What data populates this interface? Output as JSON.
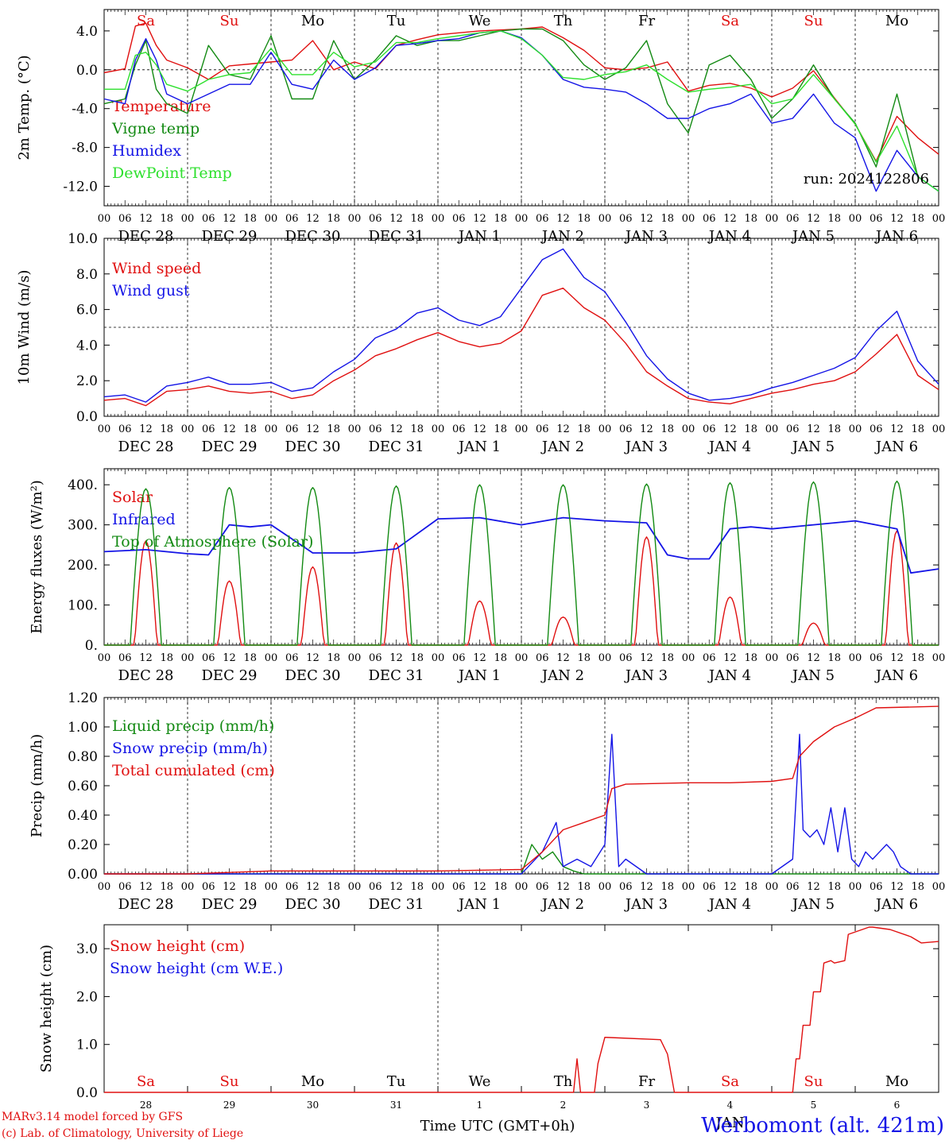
{
  "colors": {
    "red": "#e01010",
    "green": "#138a13",
    "blue": "#1414e6",
    "lightgreen": "#2ee02e",
    "black": "#000000"
  },
  "chart_data": [
    {
      "type": "line",
      "ylabel": "2m Temp. (°C)",
      "ylim": [
        -14,
        6.2
      ],
      "yticks": [
        4.0,
        0.0,
        -4.0,
        -8.0,
        -12.0
      ],
      "yticklabels": [
        "4.0",
        "0.0",
        "-4.0",
        "-8.0",
        "-12.0"
      ],
      "ref_line": 0,
      "weekdays": [
        "Sa",
        "Su",
        "Mo",
        "Tu",
        "We",
        "Th",
        "Fr",
        "Sa",
        "Su",
        "Mo"
      ],
      "annotation": "run: 2024122806",
      "x_hours": [
        0,
        6,
        9,
        12,
        15,
        18,
        24,
        30,
        36,
        42,
        48,
        54,
        60,
        66,
        72,
        78,
        84,
        90,
        96,
        102,
        108,
        114,
        120,
        126,
        132,
        138,
        144,
        150,
        156,
        162,
        168,
        174,
        180,
        186,
        192,
        198,
        204,
        210,
        216,
        222,
        228,
        234,
        240
      ],
      "series": [
        {
          "name": "Temperature",
          "color": "red",
          "values": [
            -0.3,
            0.1,
            4.5,
            4.8,
            2.5,
            1.0,
            0.2,
            -1.0,
            0.4,
            0.6,
            0.8,
            1.0,
            3.0,
            0.0,
            0.8,
            0.1,
            2.5,
            3.1,
            3.6,
            3.8,
            4.0,
            4.1,
            4.2,
            4.4,
            3.3,
            2.0,
            0.2,
            0.0,
            0.2,
            0.8,
            -2.2,
            -1.6,
            -1.4,
            -1.9,
            -2.8,
            -1.9,
            -0.1,
            -2.9,
            -5.6,
            -9.4,
            -4.8,
            -7.0,
            -8.7
          ]
        },
        {
          "name": "Vigne temp",
          "color": "green",
          "values": [
            -3.5,
            -3.0,
            0.5,
            3.0,
            -2.0,
            -3.5,
            -4.5,
            2.5,
            -0.5,
            -1.0,
            3.5,
            -3.0,
            -3.0,
            3.0,
            -1.0,
            1.0,
            3.5,
            2.5,
            3.0,
            3.0,
            3.5,
            4.0,
            4.2,
            4.2,
            3.0,
            0.5,
            -1.0,
            0.2,
            3.0,
            -3.5,
            -6.5,
            0.5,
            1.5,
            -1.0,
            -5.0,
            -3.0,
            0.5,
            -3.0,
            -5.5,
            -10.0,
            -2.5,
            -11.0,
            -12.5
          ]
        },
        {
          "name": "Humidex",
          "color": "blue",
          "values": [
            -3.0,
            -3.5,
            1.0,
            3.2,
            1.0,
            -2.5,
            -3.5,
            -2.5,
            -1.5,
            -1.5,
            1.8,
            -1.5,
            -2.0,
            1.0,
            -1.0,
            0.2,
            2.5,
            2.7,
            3.0,
            3.2,
            3.8,
            4.0,
            3.3,
            1.5,
            -1.0,
            -1.8,
            -2.0,
            -2.3,
            -3.5,
            -5.0,
            -5.0,
            -4.0,
            -3.5,
            -2.5,
            -5.5,
            -5.0,
            -2.5,
            -5.5,
            -7.0,
            -12.5,
            -8.3,
            -11.0,
            -12.5
          ]
        },
        {
          "name": "DewPoint Temp",
          "color": "lightgreen",
          "values": [
            -2.0,
            -2.0,
            1.5,
            1.8,
            0.5,
            -1.5,
            -2.2,
            -1.0,
            -0.5,
            -0.3,
            2.2,
            -0.5,
            -0.5,
            1.8,
            0.3,
            0.8,
            2.8,
            2.8,
            3.2,
            3.5,
            3.8,
            4.0,
            3.2,
            1.5,
            -0.8,
            -1.0,
            -0.5,
            -0.2,
            0.5,
            -1.0,
            -2.3,
            -2.0,
            -1.8,
            -1.5,
            -3.5,
            -3.0,
            -0.5,
            -3.0,
            -5.6,
            -9.5,
            -5.8,
            -11.0,
            -12.5
          ]
        }
      ]
    },
    {
      "type": "line",
      "ylabel": "10m Wind (m/s)",
      "ylim": [
        0,
        10
      ],
      "yticks": [
        0,
        2,
        4,
        6,
        8,
        10
      ],
      "yticklabels": [
        "0.0",
        "2.0",
        "4.0",
        "6.0",
        "8.0",
        "10.0"
      ],
      "ref_line": 5,
      "x_hours": [
        0,
        6,
        12,
        18,
        24,
        30,
        36,
        42,
        48,
        54,
        60,
        66,
        72,
        78,
        84,
        90,
        96,
        102,
        108,
        114,
        120,
        126,
        132,
        138,
        144,
        150,
        156,
        162,
        168,
        174,
        180,
        186,
        192,
        198,
        204,
        210,
        216,
        222,
        228,
        234,
        240
      ],
      "series": [
        {
          "name": "Wind speed",
          "color": "red",
          "values": [
            0.9,
            1.0,
            0.6,
            1.4,
            1.5,
            1.7,
            1.4,
            1.3,
            1.4,
            1.0,
            1.2,
            2.0,
            2.6,
            3.4,
            3.8,
            4.3,
            4.7,
            4.2,
            3.9,
            4.1,
            4.8,
            6.8,
            7.2,
            6.1,
            5.4,
            4.1,
            2.5,
            1.7,
            1.0,
            0.8,
            0.7,
            1.0,
            1.3,
            1.5,
            1.8,
            2.0,
            2.5,
            3.5,
            4.6,
            2.3,
            1.5
          ]
        },
        {
          "name": "Wind gust",
          "color": "blue",
          "values": [
            1.1,
            1.2,
            0.8,
            1.7,
            1.9,
            2.2,
            1.8,
            1.8,
            1.9,
            1.4,
            1.6,
            2.5,
            3.2,
            4.4,
            4.9,
            5.8,
            6.1,
            5.4,
            5.1,
            5.6,
            7.2,
            8.8,
            9.4,
            7.8,
            7.0,
            5.3,
            3.4,
            2.1,
            1.3,
            0.9,
            1.0,
            1.2,
            1.6,
            1.9,
            2.3,
            2.7,
            3.3,
            4.8,
            5.9,
            3.1,
            1.8
          ]
        }
      ]
    },
    {
      "type": "line",
      "ylabel": "Energy fluxes (W/m²)",
      "ylim": [
        0,
        440
      ],
      "yticks": [
        0,
        100,
        200,
        300,
        400
      ],
      "yticklabels": [
        "0.",
        "100.",
        "200.",
        "300.",
        "400."
      ],
      "series": [
        {
          "name": "Solar",
          "color": "red",
          "daily_peak": [
            260,
            160,
            195,
            255,
            110,
            70,
            270,
            120,
            55,
            285
          ]
        },
        {
          "name": "Infrared",
          "color": "blue",
          "x_hours": [
            0,
            12,
            24,
            30,
            36,
            42,
            48,
            60,
            72,
            84,
            96,
            108,
            120,
            132,
            144,
            156,
            162,
            168,
            174,
            180,
            186,
            192,
            204,
            216,
            228,
            232,
            240
          ],
          "values": [
            233,
            238,
            228,
            225,
            300,
            295,
            300,
            230,
            230,
            240,
            315,
            318,
            300,
            318,
            310,
            305,
            225,
            215,
            215,
            290,
            295,
            290,
            300,
            310,
            290,
            180,
            190
          ]
        },
        {
          "name": "Top of Atmosphere (Solar)",
          "color": "green",
          "daily_peak": [
            390,
            393,
            393,
            397,
            400,
            400,
            402,
            405,
            407,
            409
          ]
        }
      ]
    },
    {
      "type": "line",
      "ylabel": "Precip (mm/h)",
      "ylim": [
        0,
        1.2
      ],
      "yticks": [
        0,
        0.2,
        0.4,
        0.6,
        0.8,
        1.0,
        1.2
      ],
      "yticklabels": [
        "0.00",
        "0.20",
        "0.40",
        "0.60",
        "0.80",
        "1.00",
        "1.20"
      ],
      "series": [
        {
          "name": "Liquid precip (mm/h)",
          "color": "green",
          "x_hours": [
            0,
            120,
            123,
            126,
            129,
            132,
            135,
            138,
            240
          ],
          "values": [
            0,
            0,
            0.2,
            0.1,
            0.15,
            0.05,
            0.02,
            0,
            0
          ]
        },
        {
          "name": "Snow precip (mm/h)",
          "color": "blue",
          "x_hours": [
            0,
            120,
            126,
            130,
            132,
            136,
            140,
            144,
            146,
            148,
            150,
            156,
            168,
            192,
            198,
            200,
            201,
            203,
            205,
            207,
            209,
            211,
            213,
            215,
            217,
            219,
            221,
            223,
            225,
            227,
            229,
            232,
            240
          ],
          "values": [
            0,
            0,
            0.15,
            0.35,
            0.05,
            0.1,
            0.05,
            0.2,
            0.95,
            0.05,
            0.1,
            0,
            0,
            0,
            0.1,
            0.95,
            0.3,
            0.25,
            0.3,
            0.2,
            0.45,
            0.15,
            0.45,
            0.1,
            0.05,
            0.15,
            0.1,
            0.15,
            0.2,
            0.15,
            0.05,
            0,
            0
          ]
        },
        {
          "name": "Total cumulated (cm)",
          "color": "red",
          "x_hours": [
            0,
            24,
            36,
            48,
            96,
            120,
            126,
            132,
            138,
            144,
            146,
            150,
            168,
            180,
            192,
            198,
            200,
            204,
            210,
            216,
            222,
            240
          ],
          "values": [
            0,
            0,
            0.01,
            0.02,
            0.02,
            0.03,
            0.15,
            0.3,
            0.35,
            0.4,
            0.58,
            0.61,
            0.62,
            0.62,
            0.63,
            0.65,
            0.8,
            0.9,
            1.0,
            1.06,
            1.13,
            1.14
          ]
        }
      ]
    },
    {
      "type": "line",
      "ylabel": "Snow height (cm)",
      "ylim": [
        0,
        3.5
      ],
      "yticks": [
        0,
        1,
        2,
        3
      ],
      "yticklabels": [
        "0.0",
        "1.0",
        "2.0",
        "3.0"
      ],
      "weekdays": [
        "Sa",
        "Su",
        "Mo",
        "Tu",
        "We",
        "Th",
        "Fr",
        "Sa",
        "Su",
        "Mo"
      ],
      "daynumbers": [
        "28",
        "29",
        "30",
        "31",
        "1",
        "2",
        "3",
        "4",
        "5",
        "6"
      ],
      "month_label": "JAN",
      "xlabel": "Time UTC (GMT+0h)",
      "series": [
        {
          "name": "Snow height (cm)",
          "color": "red",
          "x_hours": [
            0,
            135,
            136,
            137,
            141,
            142,
            144,
            160,
            162,
            164,
            198,
            199,
            200,
            201,
            203,
            204,
            206,
            207,
            209,
            210,
            213,
            214,
            220,
            221,
            226,
            232,
            235,
            240
          ],
          "values": [
            0,
            0,
            0.7,
            0,
            0,
            0.6,
            1.15,
            1.1,
            0.8,
            0,
            0,
            0.7,
            0.7,
            1.4,
            1.4,
            2.1,
            2.1,
            2.7,
            2.75,
            2.7,
            2.75,
            3.3,
            3.45,
            3.45,
            3.4,
            3.25,
            3.12,
            3.15
          ]
        },
        {
          "name": "Snow height (cm W.E.)",
          "color": "blue",
          "values": []
        }
      ]
    }
  ],
  "axis": {
    "hour_labels": [
      "00",
      "06",
      "12",
      "18"
    ],
    "date_labels": [
      "DEC 28",
      "DEC 29",
      "DEC 30",
      "DEC 31",
      "JAN  1",
      "JAN  2",
      "JAN  3",
      "JAN  4",
      "JAN  5",
      "JAN  6"
    ],
    "weekend_labels": [
      "Sa",
      "Su"
    ]
  },
  "footer": {
    "credit_line1": "MARv3.14 model forced by GFS",
    "credit_line2": "(c) Lab. of Climatology, University of Liege",
    "station": "Werbomont (alt. 421m)"
  }
}
